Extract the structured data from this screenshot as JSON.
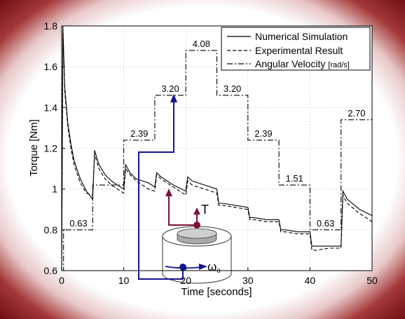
{
  "chart_data": {
    "type": "line",
    "xlabel": "Time [seconds]",
    "ylabel": "Torque [Nm]",
    "xlim": [
      0,
      50
    ],
    "ylim": [
      0.6,
      1.8
    ],
    "xticks": [
      0,
      10,
      20,
      30,
      40,
      50
    ],
    "yticks": [
      0.6,
      0.8,
      1,
      1.2,
      1.4,
      1.6,
      1.8
    ],
    "xtick_labels": [
      "0",
      "10",
      "20",
      "30",
      "40",
      "50"
    ],
    "ytick_labels": [
      "0.6",
      "0.8",
      "1",
      "1.2",
      "1.4",
      "1.6",
      "1.8"
    ],
    "grid": true,
    "legend_position": "top-right",
    "series": [
      {
        "name": "Numerical Simulation",
        "style": "solid",
        "x": [
          0,
          0.2,
          0.5,
          1,
          1.5,
          2,
          3,
          4,
          5,
          5.3,
          6,
          7,
          8,
          9,
          10,
          10.3,
          11,
          12,
          13,
          14,
          15,
          15.3,
          16,
          18,
          20,
          20.3,
          21,
          23,
          25,
          25.3,
          26,
          28,
          30,
          30.3,
          31,
          33,
          35,
          35.3,
          36,
          38,
          40,
          40.3,
          41,
          43,
          45,
          45.3,
          46,
          48,
          50
        ],
        "y": [
          0.6,
          1.78,
          1.5,
          1.32,
          1.22,
          1.14,
          1.05,
          0.99,
          0.95,
          1.19,
          1.12,
          1.07,
          1.04,
          1.02,
          1.0,
          1.12,
          1.08,
          1.05,
          1.04,
          1.03,
          1.01,
          1.08,
          1.06,
          1.02,
          0.99,
          1.06,
          1.04,
          1.02,
          1.0,
          0.93,
          0.93,
          0.92,
          0.91,
          0.86,
          0.86,
          0.85,
          0.85,
          0.8,
          0.8,
          0.79,
          0.79,
          0.72,
          0.72,
          0.72,
          0.72,
          0.99,
          0.95,
          0.9,
          0.87
        ]
      },
      {
        "name": "Experimental Result",
        "style": "dashed",
        "x": [
          0,
          0.2,
          0.5,
          1,
          1.5,
          2,
          3,
          4,
          5,
          5.3,
          6,
          7,
          8,
          9,
          10,
          10.3,
          11,
          12,
          13,
          14,
          15,
          15.3,
          16,
          18,
          20,
          20.3,
          21,
          23,
          25,
          25.3,
          26,
          28,
          30,
          30.3,
          31,
          33,
          35,
          35.3,
          36,
          38,
          40,
          40.3,
          41,
          43,
          45,
          45.3,
          46,
          48,
          50
        ],
        "y": [
          0.6,
          1.8,
          1.48,
          1.3,
          1.2,
          1.12,
          1.03,
          0.98,
          0.97,
          1.17,
          1.1,
          1.05,
          1.02,
          1.0,
          0.98,
          1.1,
          1.07,
          1.04,
          1.02,
          1.0,
          0.99,
          1.07,
          1.05,
          1.01,
          0.97,
          1.04,
          1.02,
          1.0,
          0.98,
          0.92,
          0.92,
          0.91,
          0.9,
          0.85,
          0.85,
          0.84,
          0.84,
          0.79,
          0.79,
          0.78,
          0.78,
          0.7,
          0.7,
          0.71,
          0.71,
          0.97,
          0.93,
          0.88,
          0.84
        ]
      },
      {
        "name": "Angular Velocity",
        "legend_unit": "[rad/s]",
        "style": "dash-dot",
        "x": [
          0,
          0.3,
          0.3,
          5,
          5,
          10,
          10,
          15,
          15,
          20,
          20,
          25,
          25,
          30,
          30,
          35,
          35,
          40,
          40,
          45,
          45,
          50
        ],
        "y": [
          0.6,
          0.6,
          0.8,
          0.8,
          1.02,
          1.02,
          1.24,
          1.24,
          1.46,
          1.46,
          1.68,
          1.68,
          1.46,
          1.46,
          1.24,
          1.24,
          1.02,
          1.02,
          0.8,
          0.8,
          1.34,
          1.34
        ]
      }
    ],
    "step_labels": [
      {
        "text": "0.63",
        "x": 2.7,
        "y": 0.8
      },
      {
        "text": "2.39",
        "x": 12.5,
        "y": 1.24
      },
      {
        "text": "3.20",
        "x": 17.5,
        "y": 1.46
      },
      {
        "text": "4.08",
        "x": 22.5,
        "y": 1.68
      },
      {
        "text": "3.20",
        "x": 27.5,
        "y": 1.46
      },
      {
        "text": "2.39",
        "x": 32.5,
        "y": 1.24
      },
      {
        "text": "1.51",
        "x": 37.5,
        "y": 1.02
      },
      {
        "text": "0.63",
        "x": 42.5,
        "y": 0.8
      },
      {
        "text": "2.70",
        "x": 47.5,
        "y": 1.34
      }
    ]
  },
  "inset": {
    "torque_symbol": "T",
    "omega_symbol": "ω",
    "omega_subscript": "o"
  },
  "colors": {
    "frame_dark": "#6e0f12",
    "plot_line": "#000000",
    "arrow_blue": "#141490",
    "arrow_red": "#7a1430",
    "cylinder_gray": "#bdbdbd"
  }
}
